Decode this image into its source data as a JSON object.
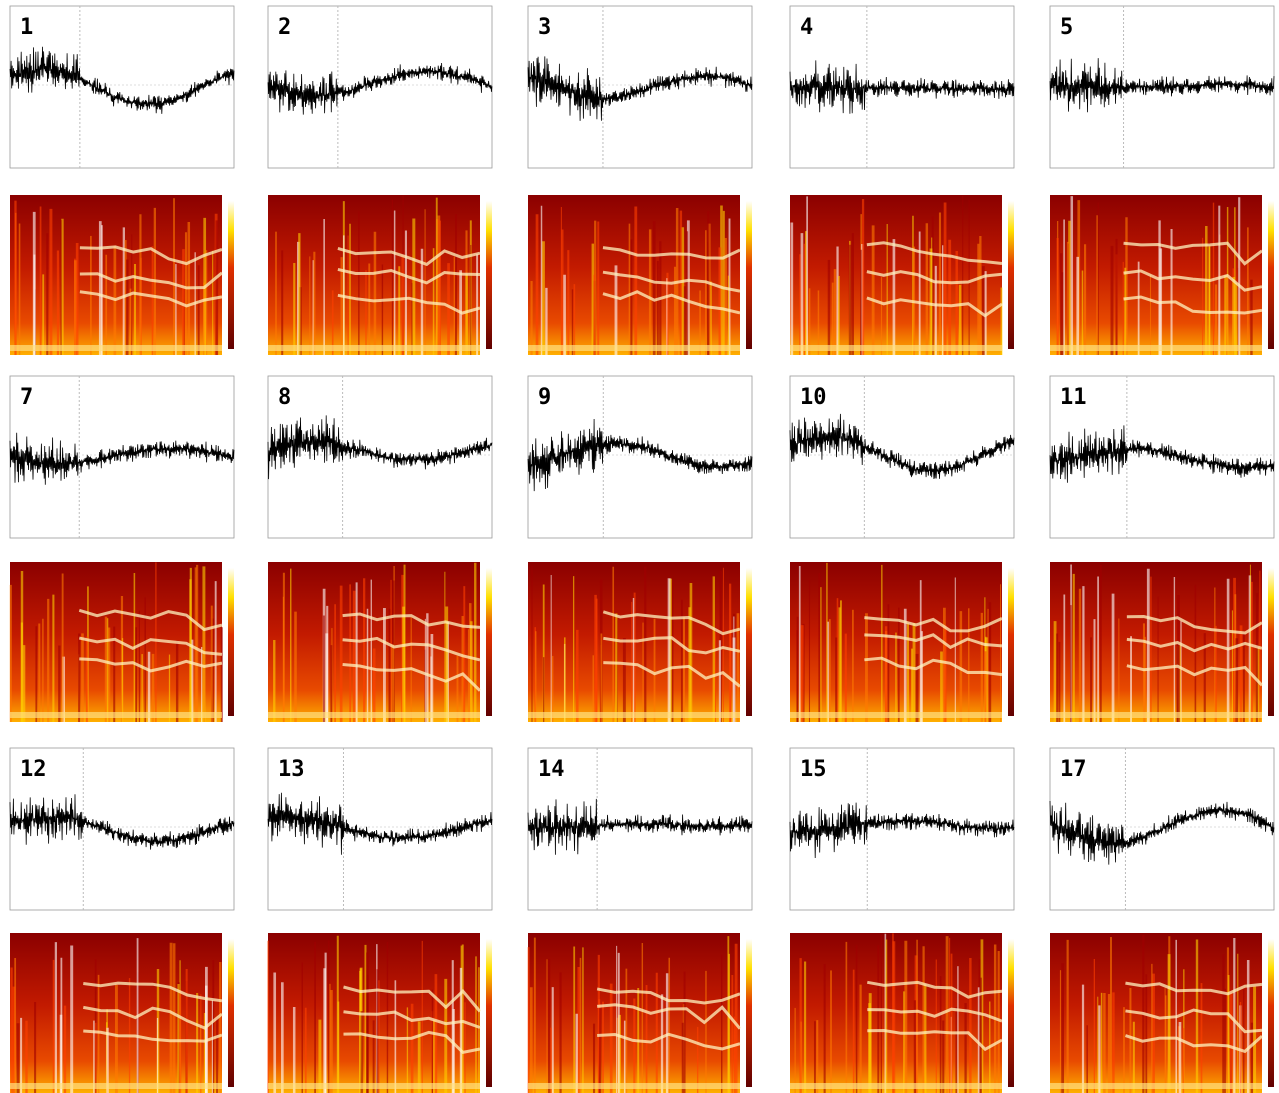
{
  "panels": [
    {
      "label": "1"
    },
    {
      "label": "2"
    },
    {
      "label": "3"
    },
    {
      "label": "4"
    },
    {
      "label": "5"
    },
    {
      "label": "7"
    },
    {
      "label": "8"
    },
    {
      "label": "9"
    },
    {
      "label": "10"
    },
    {
      "label": "11"
    },
    {
      "label": "12"
    },
    {
      "label": "13"
    },
    {
      "label": "14"
    },
    {
      "label": "15"
    },
    {
      "label": "17"
    }
  ]
}
